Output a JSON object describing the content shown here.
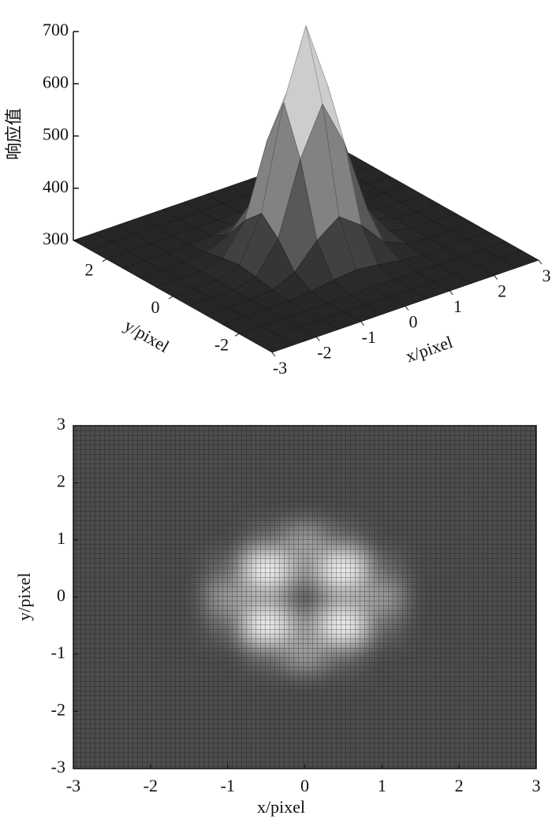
{
  "chart_data": [
    {
      "type": "surface",
      "zlabel": "响应值",
      "xlabel": "x/pixel",
      "ylabel": "y/pixel",
      "x": [
        -3,
        -2.5,
        -2,
        -1.5,
        -1,
        -0.5,
        0,
        0.5,
        1,
        1.5,
        2,
        2.5,
        3
      ],
      "y": [
        -3,
        -2.5,
        -2,
        -1.5,
        -1,
        -0.5,
        0,
        0.5,
        1,
        1.5,
        2,
        2.5,
        3
      ],
      "z": [
        [
          300,
          300,
          300,
          300,
          300,
          300,
          300,
          300,
          300,
          300,
          300,
          300,
          300
        ],
        [
          300,
          300,
          300,
          300,
          300,
          300,
          300,
          300,
          300,
          300,
          300,
          300,
          300
        ],
        [
          300,
          300,
          300,
          300,
          300,
          301,
          301,
          301,
          300,
          300,
          300,
          300,
          300
        ],
        [
          300,
          300,
          300,
          301,
          304,
          311,
          316,
          311,
          304,
          301,
          300,
          300,
          300
        ],
        [
          300,
          300,
          300,
          304,
          323,
          369,
          400,
          369,
          323,
          304,
          300,
          300,
          300
        ],
        [
          300,
          300,
          301,
          311,
          369,
          507,
          598,
          507,
          369,
          311,
          301,
          300,
          300
        ],
        [
          300,
          300,
          301,
          316,
          400,
          598,
          730,
          598,
          400,
          316,
          301,
          300,
          300
        ],
        [
          300,
          300,
          301,
          311,
          369,
          507,
          598,
          507,
          369,
          311,
          301,
          300,
          300
        ],
        [
          300,
          300,
          300,
          304,
          323,
          369,
          400,
          369,
          323,
          304,
          300,
          300,
          300
        ],
        [
          300,
          300,
          300,
          301,
          304,
          311,
          316,
          311,
          304,
          301,
          300,
          300,
          300
        ],
        [
          300,
          300,
          300,
          300,
          300,
          301,
          301,
          301,
          300,
          300,
          300,
          300,
          300
        ],
        [
          300,
          300,
          300,
          300,
          300,
          300,
          300,
          300,
          300,
          300,
          300,
          300,
          300
        ],
        [
          300,
          300,
          300,
          300,
          300,
          300,
          300,
          300,
          300,
          300,
          300,
          300,
          300
        ]
      ],
      "xlim": [
        -3,
        3
      ],
      "ylim": [
        -3,
        3
      ],
      "zlim": [
        300,
        700
      ],
      "xticks": [
        -3,
        -2,
        -1,
        0,
        1,
        2,
        3
      ],
      "yticks": [
        -2,
        0,
        2
      ],
      "zticks": [
        300,
        400,
        500,
        600,
        700
      ]
    },
    {
      "type": "heatmap",
      "xlabel": "x/pixel",
      "ylabel": "y/pixel",
      "x": [
        -3,
        -2.5,
        -2,
        -1.5,
        -1,
        -0.5,
        0,
        0.5,
        1,
        1.5,
        2,
        2.5,
        3
      ],
      "y": [
        -3,
        -2.5,
        -2,
        -1.5,
        -1,
        -0.5,
        0,
        0.5,
        1,
        1.5,
        2,
        2.5,
        3
      ],
      "z": [
        [
          0.3,
          0.3,
          0.3,
          0.3,
          0.3,
          0.3,
          0.3,
          0.3,
          0.3,
          0.3,
          0.3,
          0.3,
          0.3
        ],
        [
          0.3,
          0.3,
          0.3,
          0.3,
          0.3,
          0.3,
          0.3,
          0.3,
          0.3,
          0.3,
          0.3,
          0.3,
          0.3
        ],
        [
          0.3,
          0.3,
          0.3,
          0.3,
          0.3,
          0.3,
          0.3,
          0.3,
          0.3,
          0.3,
          0.3,
          0.3,
          0.3
        ],
        [
          0.3,
          0.3,
          0.3,
          0.3,
          0.3,
          0.3,
          0.3,
          0.3,
          0.3,
          0.3,
          0.3,
          0.3,
          0.3
        ],
        [
          0.3,
          0.3,
          0.3,
          0.3,
          0.3,
          0.43,
          0.62,
          0.43,
          0.3,
          0.3,
          0.3,
          0.3,
          0.3
        ],
        [
          0.3,
          0.3,
          0.3,
          0.3,
          0.43,
          0.99,
          0.62,
          0.99,
          0.43,
          0.3,
          0.3,
          0.3,
          0.3
        ],
        [
          0.3,
          0.3,
          0.3,
          0.3,
          0.62,
          0.62,
          0.3,
          0.62,
          0.62,
          0.3,
          0.3,
          0.3,
          0.3
        ],
        [
          0.3,
          0.3,
          0.3,
          0.3,
          0.43,
          0.99,
          0.62,
          0.99,
          0.43,
          0.3,
          0.3,
          0.3,
          0.3
        ],
        [
          0.3,
          0.3,
          0.3,
          0.3,
          0.3,
          0.43,
          0.62,
          0.43,
          0.3,
          0.3,
          0.3,
          0.3,
          0.3
        ],
        [
          0.3,
          0.3,
          0.3,
          0.3,
          0.3,
          0.3,
          0.3,
          0.3,
          0.3,
          0.3,
          0.3,
          0.3,
          0.3
        ],
        [
          0.3,
          0.3,
          0.3,
          0.3,
          0.3,
          0.3,
          0.3,
          0.3,
          0.3,
          0.3,
          0.3,
          0.3,
          0.3
        ],
        [
          0.3,
          0.3,
          0.3,
          0.3,
          0.3,
          0.3,
          0.3,
          0.3,
          0.3,
          0.3,
          0.3,
          0.3,
          0.3
        ],
        [
          0.3,
          0.3,
          0.3,
          0.3,
          0.3,
          0.3,
          0.3,
          0.3,
          0.3,
          0.3,
          0.3,
          0.3,
          0.3
        ]
      ],
      "xlim": [
        -3,
        3
      ],
      "ylim": [
        -3,
        3
      ],
      "xticks": [
        -3,
        -2,
        -1,
        0,
        1,
        2,
        3
      ],
      "yticks": [
        -3,
        -2,
        -1,
        0,
        1,
        2,
        3
      ]
    }
  ]
}
